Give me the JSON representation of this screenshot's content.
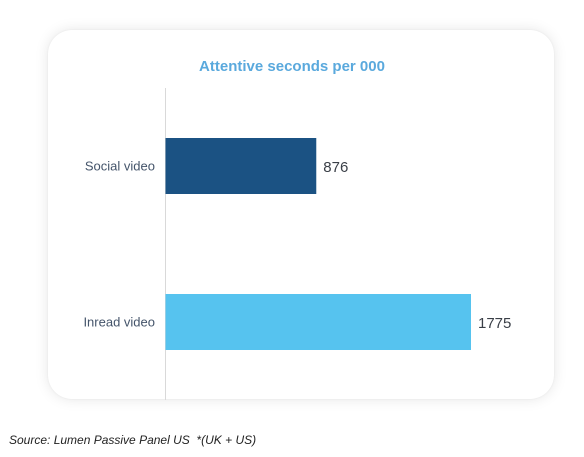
{
  "chart_data": {
    "type": "bar",
    "orientation": "horizontal",
    "title": "Attentive seconds per 000",
    "categories": [
      "Social  video",
      "Inread video"
    ],
    "values": [
      876,
      1775
    ],
    "value_labels": [
      "876",
      "1775"
    ],
    "colors": [
      "#1b5283",
      "#56c3ef"
    ],
    "xlim": [
      0,
      2000
    ],
    "grid": false,
    "legend": "none"
  },
  "source": "Source: Lumen Passive Panel US  *(UK + US)",
  "colors": {
    "title": "#5aa9dd",
    "axis": "#d9d9d9"
  }
}
